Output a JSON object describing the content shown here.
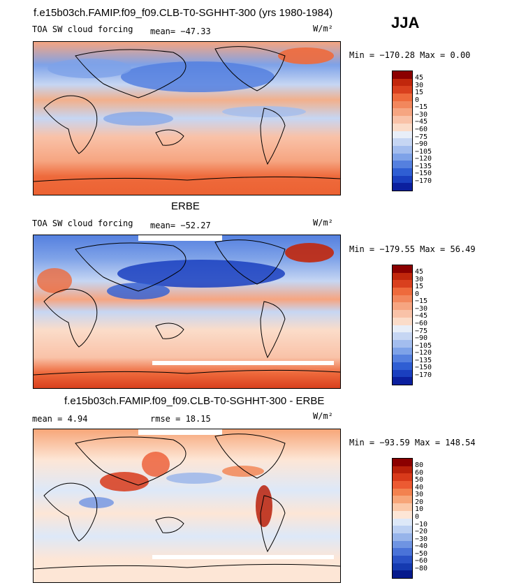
{
  "header": {
    "title": "f.e15b03ch.FAMIP.f09_f09.CLB-T0-SGHHT-300 (yrs 1980-1984)",
    "season": "JJA"
  },
  "panels": [
    {
      "subtitle": "",
      "left_label": "TOA SW cloud forcing",
      "stat1": "mean= −47.33",
      "stat2": "",
      "units": "W/m²",
      "minmax": "Min = −170.28 Max =   0.00",
      "colorbar": {
        "labels": [
          "45",
          "30",
          "15",
          "0",
          "−15",
          "−30",
          "−45",
          "−60",
          "−75",
          "−90",
          "−105",
          "−120",
          "−135",
          "−150",
          "−170"
        ],
        "colors": [
          "#8b0000",
          "#c1270c",
          "#d9401e",
          "#ee6a3c",
          "#f2875d",
          "#f6a581",
          "#f9c2a8",
          "#fbdcc9",
          "#e8eef8",
          "#c6d6f3",
          "#a3bdee",
          "#7ea2e8",
          "#5580df",
          "#2f5ed3",
          "#1a3fbf",
          "#0b1f9e"
        ]
      }
    },
    {
      "subtitle": "ERBE",
      "left_label": "TOA SW cloud forcing",
      "stat1": "mean= −52.27",
      "stat2": "",
      "units": "W/m²",
      "minmax": "Min = −179.55 Max =  56.49",
      "colorbar": {
        "labels": [
          "45",
          "30",
          "15",
          "0",
          "−15",
          "−30",
          "−45",
          "−60",
          "−75",
          "−90",
          "−105",
          "−120",
          "−135",
          "−150",
          "−170"
        ],
        "colors": [
          "#8b0000",
          "#c1270c",
          "#d9401e",
          "#ee6a3c",
          "#f2875d",
          "#f6a581",
          "#f9c2a8",
          "#fbdcc9",
          "#e8eef8",
          "#c6d6f3",
          "#a3bdee",
          "#7ea2e8",
          "#5580df",
          "#2f5ed3",
          "#1a3fbf",
          "#0b1f9e"
        ]
      }
    },
    {
      "subtitle": "f.e15b03ch.FAMIP.f09_f09.CLB-T0-SGHHT-300 - ERBE",
      "left_label": "",
      "stat1": "mean =   4.94",
      "stat2": "rmse =  18.15",
      "units": "W/m²",
      "minmax": "Min = −93.59 Max = 148.54",
      "colorbar": {
        "labels": [
          "80",
          "60",
          "50",
          "40",
          "30",
          "20",
          "10",
          "0",
          "−10",
          "−20",
          "−30",
          "−40",
          "−50",
          "−60",
          "−80"
        ],
        "colors": [
          "#8b0000",
          "#b8200a",
          "#d83a1a",
          "#ec5a32",
          "#f3824f",
          "#f7a679",
          "#fbc9a9",
          "#fde6d6",
          "#dde8f8",
          "#bcd0f2",
          "#97b4ea",
          "#6f94e2",
          "#4a73d8",
          "#2a52c6",
          "#153ab0",
          "#061a8c"
        ]
      }
    }
  ]
}
